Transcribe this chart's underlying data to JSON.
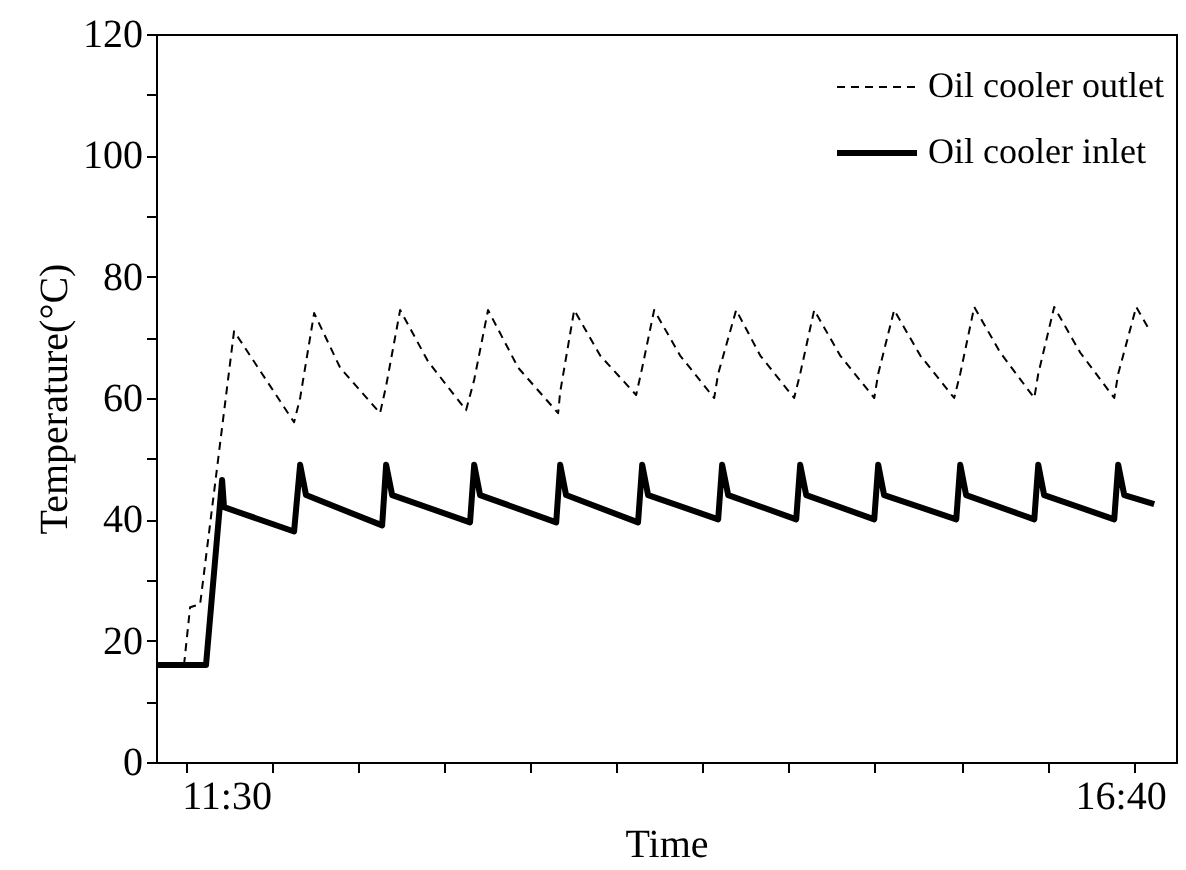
{
  "chart_data": {
    "type": "line",
    "xlabel": "Time",
    "ylabel": "Temperature(°C)",
    "xlim": [
      11.095,
      16.99
    ],
    "ylim": [
      0,
      120
    ],
    "xticks": [
      {
        "value": 11.5,
        "label": "11:30"
      },
      {
        "value": 16.667,
        "label": "16:40"
      },
      {
        "value": 11.27,
        "label": null
      },
      {
        "value": 11.77,
        "label": null
      },
      {
        "value": 12.26,
        "label": null
      },
      {
        "value": 12.76,
        "label": null
      },
      {
        "value": 13.26,
        "label": null
      },
      {
        "value": 13.75,
        "label": null
      },
      {
        "value": 14.25,
        "label": null
      },
      {
        "value": 14.75,
        "label": null
      },
      {
        "value": 15.25,
        "label": null
      },
      {
        "value": 15.75,
        "label": null
      },
      {
        "value": 16.25,
        "label": null
      },
      {
        "value": 16.75,
        "label": null
      }
    ],
    "yticks": [
      0,
      20,
      40,
      60,
      80,
      100,
      120,
      {
        "value": 10,
        "label": null
      },
      {
        "value": 30,
        "label": null
      },
      {
        "value": 50,
        "label": null
      },
      {
        "value": 70,
        "label": null
      },
      {
        "value": 90,
        "label": null
      },
      {
        "value": 110,
        "label": null
      }
    ],
    "legend": "top right",
    "grid": false,
    "marker": "none",
    "series": [
      {
        "name": "Oil cooler outlet",
        "color": "#000000",
        "line_style": "dashed",
        "x": [
          11.095,
          11.257,
          11.292,
          11.35,
          11.546,
          11.893,
          11.928,
          12.009,
          12.159,
          12.39,
          12.425,
          12.506,
          12.668,
          12.887,
          12.934,
          13.014,
          13.188,
          13.419,
          13.431,
          13.512,
          13.662,
          13.87,
          13.905,
          13.974,
          14.124,
          14.321,
          14.344,
          14.448,
          14.587,
          14.783,
          14.818,
          14.899,
          15.049,
          15.246,
          15.269,
          15.361,
          15.512,
          15.708,
          15.743,
          15.824,
          15.974,
          16.171,
          16.194,
          16.286,
          16.436,
          16.633,
          16.656,
          16.76,
          16.841
        ],
        "values": [
          16,
          16,
          25.5,
          26,
          71,
          56,
          60,
          74,
          65,
          57.5,
          62,
          74.5,
          66,
          58,
          63,
          74.5,
          65,
          57.5,
          61,
          74.5,
          67,
          60.5,
          65,
          74.5,
          67,
          60,
          64,
          74.5,
          67,
          60,
          64,
          74.5,
          67,
          60,
          64,
          74.5,
          67,
          60,
          64,
          75,
          67.5,
          60,
          64,
          75,
          67.5,
          60,
          64,
          75,
          71
        ]
      },
      {
        "name": "Oil cooler inlet",
        "color": "#000000",
        "line_style": "solid",
        "x": [
          11.095,
          11.384,
          11.477,
          11.488,
          11.893,
          11.928,
          11.962,
          12.402,
          12.425,
          12.46,
          12.91,
          12.934,
          12.968,
          13.408,
          13.431,
          13.465,
          13.881,
          13.905,
          13.939,
          14.344,
          14.367,
          14.402,
          14.795,
          14.818,
          14.853,
          15.246,
          15.269,
          15.303,
          15.72,
          15.743,
          15.777,
          16.171,
          16.194,
          16.228,
          16.633,
          16.656,
          16.691,
          16.864
        ],
        "values": [
          16,
          16,
          46.5,
          42,
          38,
          49,
          44,
          39,
          49,
          44,
          39.5,
          49,
          44,
          39.5,
          49,
          44,
          39.5,
          49,
          44,
          40,
          49,
          44,
          40,
          49,
          44,
          40,
          49,
          44,
          40,
          49,
          44,
          40,
          49,
          44,
          40,
          49,
          44,
          42.5
        ]
      }
    ]
  }
}
